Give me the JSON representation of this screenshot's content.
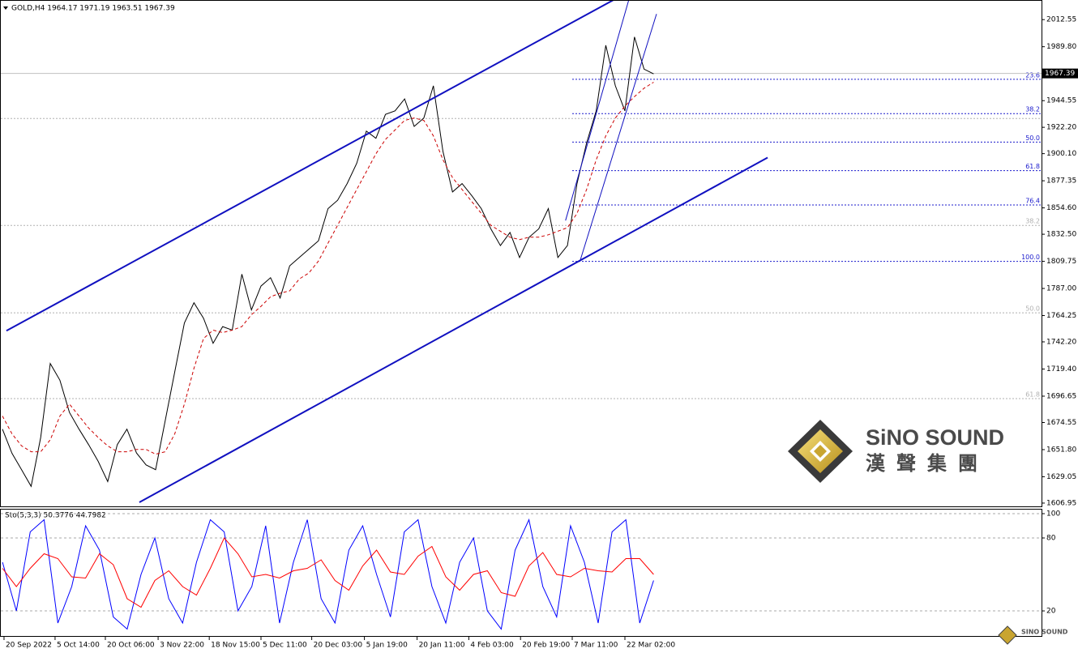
{
  "chart_data": [
    {
      "type": "line",
      "title": "GOLD,H4  1964.17 1971.19 1963.51 1967.39",
      "xlim": [
        -0.25,
        108.5
      ],
      "ylim": [
        1604.2,
        2029
      ],
      "xticks": [
        {
          "value": 0.17,
          "label": "20 Sep 2022"
        },
        {
          "value": 5.5,
          "label": "5 Oct 14:00"
        },
        {
          "value": 10.75,
          "label": "20 Oct 06:00"
        },
        {
          "value": 16.26,
          "label": "3 Nov 22:00"
        },
        {
          "value": 21.6,
          "label": "18 Nov 15:00"
        },
        {
          "value": 27,
          "label": "5 Dec 11:00"
        },
        {
          "value": 32.3,
          "label": "20 Dec 03:00"
        },
        {
          "value": 37.8,
          "label": "5 Jan 19:00"
        },
        {
          "value": 43.3,
          "label": "20 Jan 11:00"
        },
        {
          "value": 48.7,
          "label": "4 Feb 03:00"
        },
        {
          "value": 54.1,
          "label": "20 Feb 19:00"
        },
        {
          "value": 59.5,
          "label": "7 Mar 11:00"
        },
        {
          "value": 65,
          "label": "22 Mar 02:00"
        }
      ],
      "yticks": [
        2012.55,
        {
          "value": 1989.8,
          "label": "1989.80"
        },
        1944.55,
        {
          "value": 1922.2,
          "label": "1922.20"
        },
        {
          "value": 1900.1,
          "label": "1900.10"
        },
        1877.35,
        {
          "value": 1854.6,
          "label": "1854.60"
        },
        {
          "value": 1832.5,
          "label": "1832.50"
        },
        1809.75,
        {
          "value": 1787,
          "label": "1787.00"
        },
        1764.25,
        {
          "value": 1742.2,
          "label": "1742.20"
        },
        {
          "value": 1719.4,
          "label": "1719.40"
        },
        1696.65,
        1674.55,
        {
          "value": 1651.8,
          "label": "1651.80"
        },
        1629.05,
        1606.95
      ],
      "series": [
        {
          "color": "#000000",
          "values": [
            1669,
            1648.7,
            1635,
            1621,
            1662,
            1724,
            1710,
            1683,
            1669,
            1656,
            1642,
            1625,
            1656,
            1669,
            1649,
            1639,
            1635,
            1676,
            1717,
            1758,
            1775,
            1762,
            1741,
            1755,
            1752,
            1799,
            1769,
            1789,
            1796,
            1779,
            1806,
            1813,
            1820,
            1827,
            1854,
            1861,
            1875,
            1892,
            1919,
            1913,
            1933,
            1936,
            1946,
            1923,
            1930,
            1957,
            1902,
            1868,
            1875,
            1865,
            1854,
            1837,
            1823,
            1834,
            1813,
            1830,
            1837,
            1854,
            1813,
            1823,
            1875,
            1909,
            1936,
            1991,
            1957,
            1936,
            1998,
            1971,
            1967
          ]
        },
        {
          "color": "#cc0000",
          "dashed": true,
          "values": [
            1680,
            1665,
            1655,
            1650,
            1650,
            1660,
            1680,
            1690,
            1680,
            1670,
            1662,
            1655,
            1650,
            1650,
            1652,
            1652,
            1648,
            1650,
            1665,
            1690,
            1720,
            1745,
            1752,
            1750,
            1752,
            1755,
            1765,
            1772,
            1780,
            1783,
            1785,
            1795,
            1800,
            1810,
            1825,
            1840,
            1855,
            1870,
            1885,
            1900,
            1912,
            1920,
            1928,
            1930,
            1928,
            1915,
            1895,
            1880,
            1870,
            1860,
            1850,
            1840,
            1835,
            1830,
            1828,
            1830,
            1830,
            1832,
            1835,
            1838,
            1850,
            1870,
            1895,
            1915,
            1930,
            1940,
            1948,
            1955,
            1960
          ]
        }
      ],
      "current_price": 1967.39,
      "fib_levels": {
        "color": "#1a1acc",
        "start": 59.5,
        "levels": [
          {
            "value": 1962.5,
            "label": "23.6"
          },
          {
            "value": 1933.7,
            "label": "38.2"
          },
          {
            "value": 1909.8,
            "label": "50.0"
          },
          {
            "value": 1885.8,
            "label": "61.8"
          },
          {
            "value": 1857,
            "label": "76.4"
          },
          {
            "value": 1809.7,
            "label": "100.0"
          }
        ]
      },
      "fib_levels_old": {
        "color": "#b0b0b0",
        "levels": [
          {
            "value": 1929.6,
            "label": null
          },
          {
            "value": 1839.9,
            "label": "38.2"
          },
          {
            "value": 1766.6,
            "label": "50.0"
          },
          {
            "value": 1694.6,
            "label": "61.8"
          }
        ]
      },
      "trendlines": [
        {
          "color": "#1010c0",
          "width": 2,
          "x": [
            0.42,
            63.8
          ],
          "y": [
            1751.5,
            2029
          ]
        },
        {
          "color": "#1010c0",
          "width": 2,
          "x": [
            14.3,
            79.9
          ],
          "y": [
            1607.6,
            1896.8
          ]
        },
        {
          "color": "#1010c0",
          "width": 1,
          "x": [
            58.8,
            65.4
          ],
          "y": [
            1844,
            2029
          ]
        },
        {
          "color": "#1010c0",
          "width": 1,
          "x": [
            60.3,
            68.3
          ],
          "y": [
            1809.7,
            2017.3
          ]
        }
      ]
    },
    {
      "type": "line",
      "title": "Sto(5,3,3) 50.3776 44.7982",
      "xlim": [
        -0.18,
        75.0
      ],
      "ylim": [
        -1.3,
        104
      ],
      "yticks": [
        100,
        80,
        20
      ],
      "grid": true,
      "series": [
        {
          "color": "#0000ff",
          "values": [
            60,
            20,
            85,
            95,
            10,
            40,
            90,
            70,
            15,
            5,
            50,
            80,
            30,
            10,
            60,
            95,
            85,
            20,
            40,
            90,
            10,
            60,
            95,
            30,
            10,
            70,
            90,
            50,
            15,
            85,
            95,
            40,
            10,
            60,
            80,
            20,
            5,
            70,
            95,
            40,
            15,
            90,
            60,
            10,
            85,
            95,
            10,
            45
          ]
        },
        {
          "color": "#ff0000",
          "values": [
            55,
            40,
            55,
            67,
            63,
            48,
            47,
            67,
            58,
            30,
            23,
            45,
            53,
            40,
            33,
            55,
            80,
            67,
            48,
            50,
            47,
            53,
            55,
            62,
            45,
            37,
            57,
            70,
            52,
            50,
            65,
            73,
            48,
            37,
            50,
            53,
            35,
            32,
            57,
            68,
            50,
            48,
            55,
            53,
            52,
            63,
            63,
            50
          ]
        }
      ]
    }
  ],
  "watermark": {
    "brand": "SiNO SOUND",
    "chinese": "漢聲集團",
    "corner_brand": "SINO SOUND"
  }
}
